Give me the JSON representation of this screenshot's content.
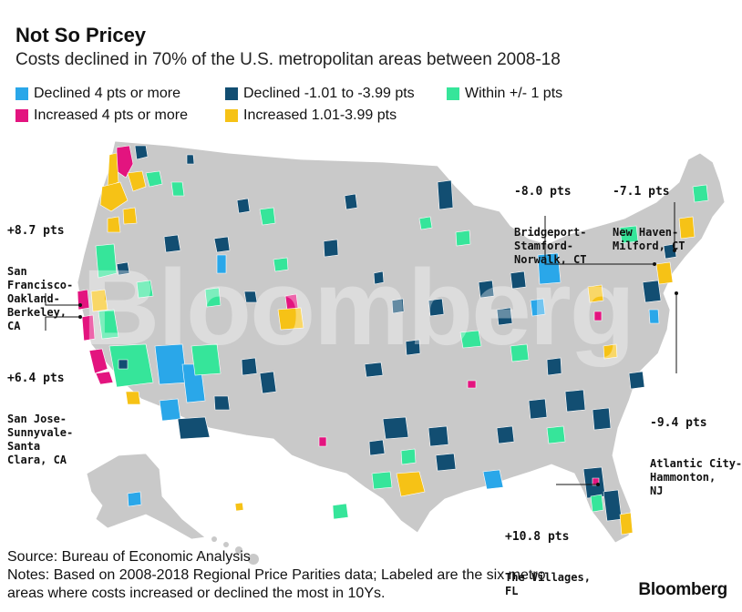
{
  "title": "Not So Pricey",
  "subtitle": "Costs declined in 70% of the U.S. metropolitan areas between 2008-18",
  "legend": [
    {
      "label": "Declined 4 pts or more",
      "color": "#2aa7e9"
    },
    {
      "label": "Declined -1.01 to -3.99 pts",
      "color": "#124e72"
    },
    {
      "label": "Within +/- 1 pts",
      "color": "#36e59a"
    },
    {
      "label": "Increased 4 pts or more",
      "color": "#e3147f"
    },
    {
      "label": "Increased 1.01-3.99 pts",
      "color": "#f6c216"
    }
  ],
  "colors": {
    "base": "#c9c9c9",
    "border": "#ffffff"
  },
  "labels": {
    "sf": {
      "value": "+8.7 pts",
      "name": "San\nFrancisco-\nOakland-\nBerkeley,\nCA"
    },
    "sj": {
      "value": "+6.4 pts",
      "name": "San Jose-\nSunnyvale-\nSanta\nClara, CA"
    },
    "bridgeport": {
      "value": "-8.0 pts",
      "name": "Bridgeport-\nStamford-\nNorwalk, CT"
    },
    "newhaven": {
      "value": "-7.1 pts",
      "name": "New Haven-\nMilford, CT"
    },
    "atlantic": {
      "value": "-9.4 pts",
      "name": "Atlantic City-\nHammonton,\nNJ"
    },
    "villages": {
      "value": "+10.8 pts",
      "name": "The Villages,\nFL"
    }
  },
  "footer": {
    "source": "Source: Bureau of Economic Analysis",
    "notes_line1": "Notes: Based on 2008-2018 Regional Price Parities data; Labeled are the six metro",
    "notes_line2": "areas where costs increased or declined the most in 10Ys."
  },
  "brand": "Bloomberg"
}
